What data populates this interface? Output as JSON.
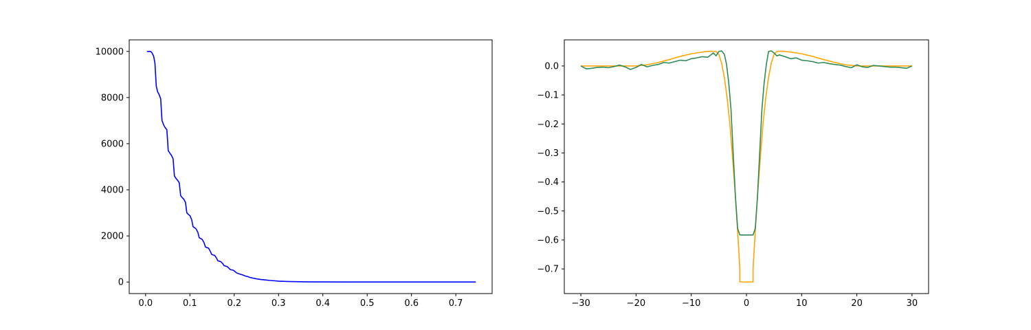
{
  "chart_data": [
    {
      "type": "line",
      "title": "",
      "xlabel": "",
      "ylabel": "",
      "xlim": [
        -0.037,
        0.782
      ],
      "ylim": [
        -500,
        10500
      ],
      "x_ticks": [
        0.0,
        0.1,
        0.2,
        0.3,
        0.4,
        0.5,
        0.6,
        0.7
      ],
      "x_tick_labels": [
        "0.0",
        "0.1",
        "0.2",
        "0.3",
        "0.4",
        "0.5",
        "0.6",
        "0.7"
      ],
      "y_ticks": [
        0,
        2000,
        4000,
        6000,
        8000,
        10000
      ],
      "y_tick_labels": [
        "0",
        "2000",
        "4000",
        "6000",
        "8000",
        "10000"
      ],
      "grid": false,
      "series": [
        {
          "color": "#0000ff",
          "x": [
            0.003,
            0.011,
            0.014,
            0.018,
            0.021,
            0.024,
            0.027,
            0.03,
            0.034,
            0.037,
            0.041,
            0.044,
            0.048,
            0.051,
            0.055,
            0.058,
            0.062,
            0.065,
            0.069,
            0.072,
            0.076,
            0.079,
            0.083,
            0.086,
            0.09,
            0.093,
            0.097,
            0.1,
            0.104,
            0.107,
            0.111,
            0.114,
            0.118,
            0.121,
            0.125,
            0.128,
            0.132,
            0.135,
            0.139,
            0.142,
            0.146,
            0.149,
            0.153,
            0.156,
            0.16,
            0.163,
            0.167,
            0.17,
            0.174,
            0.177,
            0.181,
            0.184,
            0.188,
            0.191,
            0.195,
            0.198,
            0.202,
            0.205,
            0.21,
            0.215,
            0.22,
            0.225,
            0.23,
            0.235,
            0.24,
            0.25,
            0.26,
            0.27,
            0.28,
            0.29,
            0.3,
            0.32,
            0.34,
            0.36,
            0.38,
            0.4,
            0.45,
            0.5,
            0.55,
            0.6,
            0.65,
            0.7,
            0.745
          ],
          "y": [
            10000,
            10000,
            9950,
            9800,
            9500,
            8500,
            8250,
            8150,
            7950,
            7000,
            6800,
            6700,
            6600,
            5700,
            5580,
            5500,
            5350,
            4600,
            4480,
            4420,
            4300,
            3750,
            3650,
            3600,
            3450,
            3000,
            2920,
            2880,
            2700,
            2400,
            2350,
            2300,
            2150,
            1920,
            1880,
            1840,
            1700,
            1520,
            1490,
            1470,
            1330,
            1200,
            1170,
            1150,
            1040,
            920,
            900,
            880,
            800,
            710,
            690,
            670,
            600,
            540,
            525,
            510,
            450,
            400,
            360,
            330,
            300,
            260,
            240,
            200,
            180,
            140,
            110,
            90,
            70,
            55,
            40,
            25,
            15,
            10,
            6,
            4,
            2,
            1,
            0,
            0,
            0,
            0,
            0
          ]
        }
      ]
    },
    {
      "type": "line",
      "title": "",
      "xlabel": "",
      "ylabel": "",
      "xlim": [
        -33,
        33
      ],
      "ylim": [
        -0.785,
        0.09
      ],
      "x_ticks": [
        -30,
        -20,
        -10,
        0,
        10,
        20,
        30
      ],
      "x_tick_labels": [
        "−30",
        "−20",
        "−10",
        "0",
        "10",
        "20",
        "30"
      ],
      "y_ticks": [
        0.0,
        -0.1,
        -0.2,
        -0.3,
        -0.4,
        -0.5,
        -0.6,
        -0.7
      ],
      "y_tick_labels": [
        "0.0",
        "−0.1",
        "−0.2",
        "−0.3",
        "−0.4",
        "−0.5",
        "−0.6",
        "−0.7"
      ],
      "grid": false,
      "series": [
        {
          "color": "#ffa500",
          "x": [
            -30,
            -25,
            -20,
            -18,
            -16,
            -14,
            -12,
            -10,
            -8,
            -6.5,
            -5.5,
            -5,
            -4.5,
            -4,
            -3.5,
            -3,
            -2.5,
            -2,
            -1.5,
            -1.2,
            -1.2,
            1.2,
            1.2,
            1.5,
            2,
            2.5,
            3,
            3.5,
            4,
            4.5,
            5,
            5.5,
            6.5,
            8,
            10,
            12,
            14,
            16,
            18,
            20,
            25,
            30
          ],
          "y": [
            0.0,
            0.0,
            0.0,
            0.004,
            0.012,
            0.022,
            0.033,
            0.042,
            0.048,
            0.051,
            0.05,
            0.04,
            0.01,
            -0.04,
            -0.11,
            -0.2,
            -0.32,
            -0.45,
            -0.6,
            -0.7,
            -0.745,
            -0.745,
            -0.7,
            -0.6,
            -0.45,
            -0.32,
            -0.2,
            -0.11,
            -0.04,
            0.01,
            0.04,
            0.05,
            0.051,
            0.048,
            0.042,
            0.033,
            0.022,
            0.012,
            0.004,
            0.0,
            0.0,
            0.0
          ]
        },
        {
          "color": "#2e8b57",
          "x": [
            -30,
            -29,
            -28,
            -27,
            -26,
            -25,
            -24,
            -23,
            -22,
            -21,
            -20,
            -19,
            -18,
            -17,
            -16,
            -15,
            -14,
            -13,
            -12,
            -11,
            -10,
            -9,
            -8,
            -7,
            -6,
            -5.5,
            -5,
            -4.5,
            -4,
            -3.6,
            -3.2,
            -2.8,
            -2.4,
            -2,
            -1.6,
            -1.2,
            -1.0,
            1.0,
            1.2,
            1.6,
            2,
            2.4,
            2.8,
            3.2,
            3.6,
            4,
            4.5,
            5,
            5.5,
            6,
            7,
            8,
            9,
            10,
            11,
            12,
            13,
            14,
            15,
            16,
            17,
            18,
            19,
            20,
            21,
            22,
            23,
            24,
            25,
            26,
            27,
            28,
            29,
            30
          ],
          "y": [
            0.0,
            -0.01,
            -0.008,
            -0.005,
            -0.004,
            -0.006,
            -0.002,
            0.003,
            -0.003,
            -0.012,
            -0.005,
            0.005,
            -0.003,
            0.002,
            0.005,
            0.012,
            0.01,
            0.015,
            0.02,
            0.018,
            0.025,
            0.028,
            0.032,
            0.03,
            0.045,
            0.035,
            0.05,
            0.052,
            0.04,
            0.005,
            -0.06,
            -0.15,
            -0.3,
            -0.45,
            -0.56,
            -0.583,
            -0.583,
            -0.583,
            -0.583,
            -0.56,
            -0.45,
            -0.3,
            -0.15,
            -0.06,
            0.005,
            0.05,
            0.052,
            0.045,
            0.035,
            0.038,
            0.032,
            0.025,
            0.028,
            0.02,
            0.018,
            0.015,
            0.01,
            0.012,
            0.008,
            0.005,
            0.003,
            -0.002,
            -0.006,
            0.004,
            -0.003,
            -0.005,
            0.002,
            0.0,
            -0.002,
            -0.004,
            -0.004,
            -0.006,
            -0.008,
            0.0
          ]
        }
      ]
    }
  ]
}
